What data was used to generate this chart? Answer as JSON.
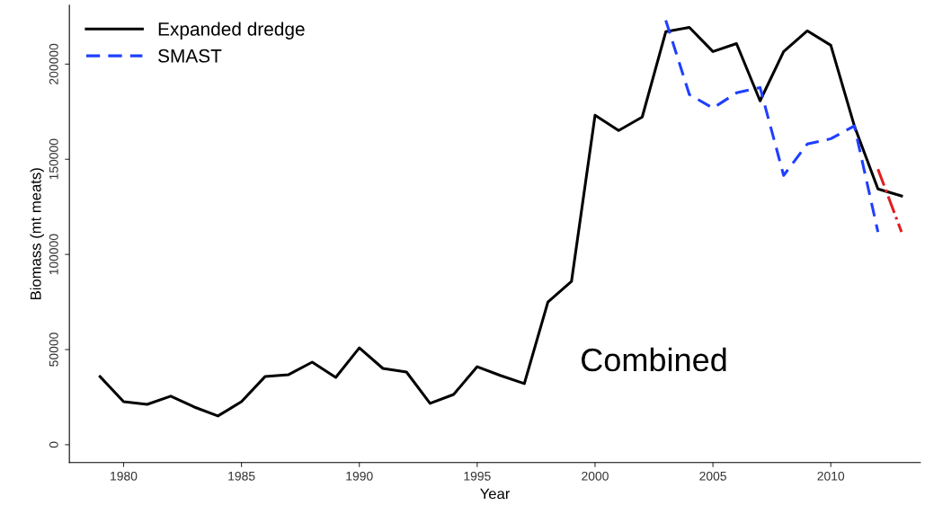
{
  "chart_data": {
    "type": "line",
    "xlabel": "Year",
    "ylabel": "Biomass (mt meats)",
    "x": [
      1979,
      1980,
      1981,
      1982,
      1983,
      1984,
      1985,
      1986,
      1987,
      1988,
      1989,
      1990,
      1991,
      1992,
      1993,
      1994,
      1995,
      1996,
      1997,
      1998,
      1999,
      2000,
      2001,
      2002,
      2003,
      2004,
      2005,
      2006,
      2007,
      2008,
      2009,
      2010,
      2011,
      2012,
      2013
    ],
    "series": [
      {
        "name": "Expanded dredge",
        "color": "#000000",
        "line_style": "solid",
        "values": [
          35800,
          22600,
          21200,
          25500,
          19800,
          15100,
          22600,
          35800,
          36800,
          43400,
          35400,
          50900,
          40100,
          38200,
          21700,
          26400,
          41000,
          36300,
          32100,
          75000,
          85800,
          173100,
          165100,
          172200,
          217000,
          219300,
          206600,
          210800,
          180700,
          206600,
          217500,
          209900,
          167500,
          134400,
          130700
        ]
      },
      {
        "name": "SMAST",
        "color": "#1f3fff",
        "line_style": "dashed",
        "x": [
          2003,
          2004,
          2005,
          2006,
          2007,
          2008,
          2009,
          2010,
          2011,
          2012
        ],
        "values": [
          223000,
          184000,
          176900,
          184900,
          187700,
          141500,
          158000,
          160800,
          167500,
          111800
        ]
      },
      {
        "color": "#e02020",
        "line_style": "dashdot",
        "x": [
          2012,
          2013
        ],
        "values": [
          144800,
          111800
        ]
      }
    ],
    "xlim": [
      1977.7,
      2013.8
    ],
    "ylim": [
      -9400,
      231000
    ],
    "xticks": [
      1980,
      1985,
      1990,
      1995,
      2000,
      2005,
      2010
    ],
    "yticks": [
      0,
      50000,
      100000,
      150000,
      200000
    ],
    "grid": false,
    "legend": "top left",
    "annotations": [
      "Combined"
    ]
  }
}
